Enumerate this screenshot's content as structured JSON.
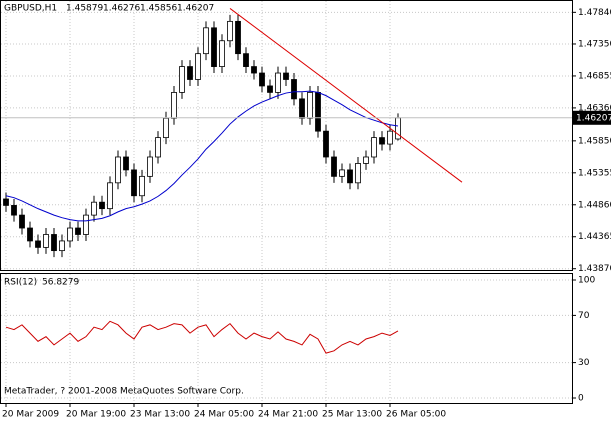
{
  "chart_data": {
    "type": "candlestick",
    "symbol": "GBPUSD,H1",
    "categories": [
      "20 Mar 2009",
      null,
      null,
      null,
      null,
      null,
      null,
      null,
      "20 Mar 19:00",
      null,
      null,
      null,
      null,
      null,
      null,
      null,
      "23 Mar 13:00",
      null,
      null,
      null,
      null,
      null,
      null,
      null,
      "24 Mar 05:00",
      null,
      null,
      null,
      null,
      null,
      null,
      null,
      "24 Mar 21:00",
      null,
      null,
      null,
      null,
      null,
      null,
      null,
      "25 Mar 13:00",
      null,
      null,
      null,
      null,
      null,
      null,
      null,
      "26 Mar 05:00",
      null
    ],
    "open": [
      1.4495,
      1.4485,
      1.447,
      1.445,
      1.443,
      1.442,
      1.444,
      1.4415,
      1.443,
      1.445,
      1.444,
      1.447,
      1.449,
      1.448,
      1.452,
      1.456,
      1.454,
      1.45,
      1.453,
      1.456,
      1.459,
      1.462,
      1.466,
      1.47,
      1.468,
      1.472,
      1.476,
      1.47,
      1.474,
      1.477,
      1.472,
      1.47,
      1.469,
      1.467,
      1.466,
      1.469,
      1.468,
      1.465,
      1.462,
      1.466,
      1.46,
      1.456,
      1.453,
      1.454,
      1.452,
      1.455,
      1.456,
      1.459,
      1.458,
      1.45879
    ],
    "high": [
      1.4505,
      1.4495,
      1.448,
      1.446,
      1.444,
      1.445,
      1.445,
      1.444,
      1.446,
      1.446,
      1.448,
      1.45,
      1.45,
      1.453,
      1.457,
      1.457,
      1.455,
      1.454,
      1.457,
      1.46,
      1.463,
      1.467,
      1.471,
      1.471,
      1.473,
      1.477,
      1.477,
      1.475,
      1.478,
      1.478,
      1.473,
      1.471,
      1.47,
      1.468,
      1.47,
      1.47,
      1.469,
      1.466,
      1.467,
      1.467,
      1.461,
      1.457,
      1.455,
      1.455,
      1.456,
      1.457,
      1.46,
      1.46,
      1.461,
      1.46276
    ],
    "low": [
      1.4475,
      1.446,
      1.444,
      1.442,
      1.441,
      1.441,
      1.4405,
      1.4405,
      1.442,
      1.443,
      1.443,
      1.446,
      1.447,
      1.447,
      1.451,
      1.453,
      1.449,
      1.449,
      1.452,
      1.455,
      1.458,
      1.461,
      1.465,
      1.467,
      1.467,
      1.471,
      1.469,
      1.469,
      1.473,
      1.471,
      1.469,
      1.468,
      1.466,
      1.465,
      1.465,
      1.467,
      1.464,
      1.461,
      1.461,
      1.459,
      1.455,
      1.452,
      1.452,
      1.451,
      1.451,
      1.454,
      1.455,
      1.457,
      1.457,
      1.45856
    ],
    "close": [
      1.4485,
      1.447,
      1.445,
      1.443,
      1.442,
      1.444,
      1.4415,
      1.443,
      1.445,
      1.444,
      1.447,
      1.449,
      1.448,
      1.452,
      1.456,
      1.454,
      1.45,
      1.453,
      1.456,
      1.459,
      1.462,
      1.466,
      1.47,
      1.468,
      1.472,
      1.476,
      1.47,
      1.474,
      1.477,
      1.472,
      1.47,
      1.469,
      1.467,
      1.466,
      1.469,
      1.468,
      1.465,
      1.462,
      1.466,
      1.46,
      1.456,
      1.453,
      1.454,
      1.452,
      1.455,
      1.456,
      1.459,
      1.458,
      1.46,
      1.46207
    ],
    "ma": {
      "color": "#0000cc",
      "values": [
        1.45,
        1.4497,
        1.4492,
        1.4486,
        1.448,
        1.4475,
        1.447,
        1.4466,
        1.4463,
        1.4461,
        1.4461,
        1.4463,
        1.4465,
        1.4469,
        1.4475,
        1.448,
        1.4483,
        1.4487,
        1.4492,
        1.4499,
        1.4508,
        1.4519,
        1.4532,
        1.4544,
        1.4557,
        1.4572,
        1.4584,
        1.4597,
        1.4611,
        1.4622,
        1.4631,
        1.4639,
        1.4645,
        1.465,
        1.4655,
        1.4659,
        1.4661,
        1.4661,
        1.4662,
        1.466,
        1.4655,
        1.4648,
        1.4641,
        1.4633,
        1.4627,
        1.4621,
        1.4617,
        1.4613,
        1.461,
        1.4608
      ]
    },
    "trendline": {
      "color": "#dd0000",
      "x": [
        28,
        57
      ],
      "y": [
        1.479,
        1.4521
      ]
    },
    "ylim": [
      1.4385,
      1.48
    ],
    "yticks": [
      {
        "value": 1.4784,
        "label": "1.47840"
      },
      {
        "value": 1.4735,
        "label": "1.47350"
      },
      {
        "value": 1.46855,
        "label": "1.46855"
      },
      {
        "value": 1.4636,
        "label": "1.46360"
      },
      {
        "value": 1.4585,
        "label": "1.45850"
      },
      {
        "value": 1.45355,
        "label": "1.45355"
      },
      {
        "value": 1.4486,
        "label": "1.44860"
      },
      {
        "value": 1.44365,
        "label": "1.44365"
      },
      {
        "value": 1.4387,
        "label": "1.43870"
      }
    ],
    "rsi": {
      "name": "RSI(12)",
      "color": "#cc0000",
      "values": [
        60,
        58,
        62,
        55,
        48,
        52,
        45,
        50,
        55,
        48,
        52,
        60,
        58,
        65,
        62,
        55,
        50,
        60,
        62,
        58,
        60,
        63,
        62,
        55,
        60,
        62,
        52,
        58,
        63,
        55,
        50,
        55,
        52,
        50,
        56,
        50,
        48,
        45,
        54,
        50,
        38,
        40,
        45,
        48,
        45,
        50,
        52,
        55,
        53,
        56.8279
      ],
      "ylim": [
        0,
        100
      ],
      "yticks": [
        100,
        70,
        30,
        0
      ]
    },
    "footer": "MetaTrader, ? 2001-2008 MetaQuotes Software Corp.",
    "grid": true
  }
}
